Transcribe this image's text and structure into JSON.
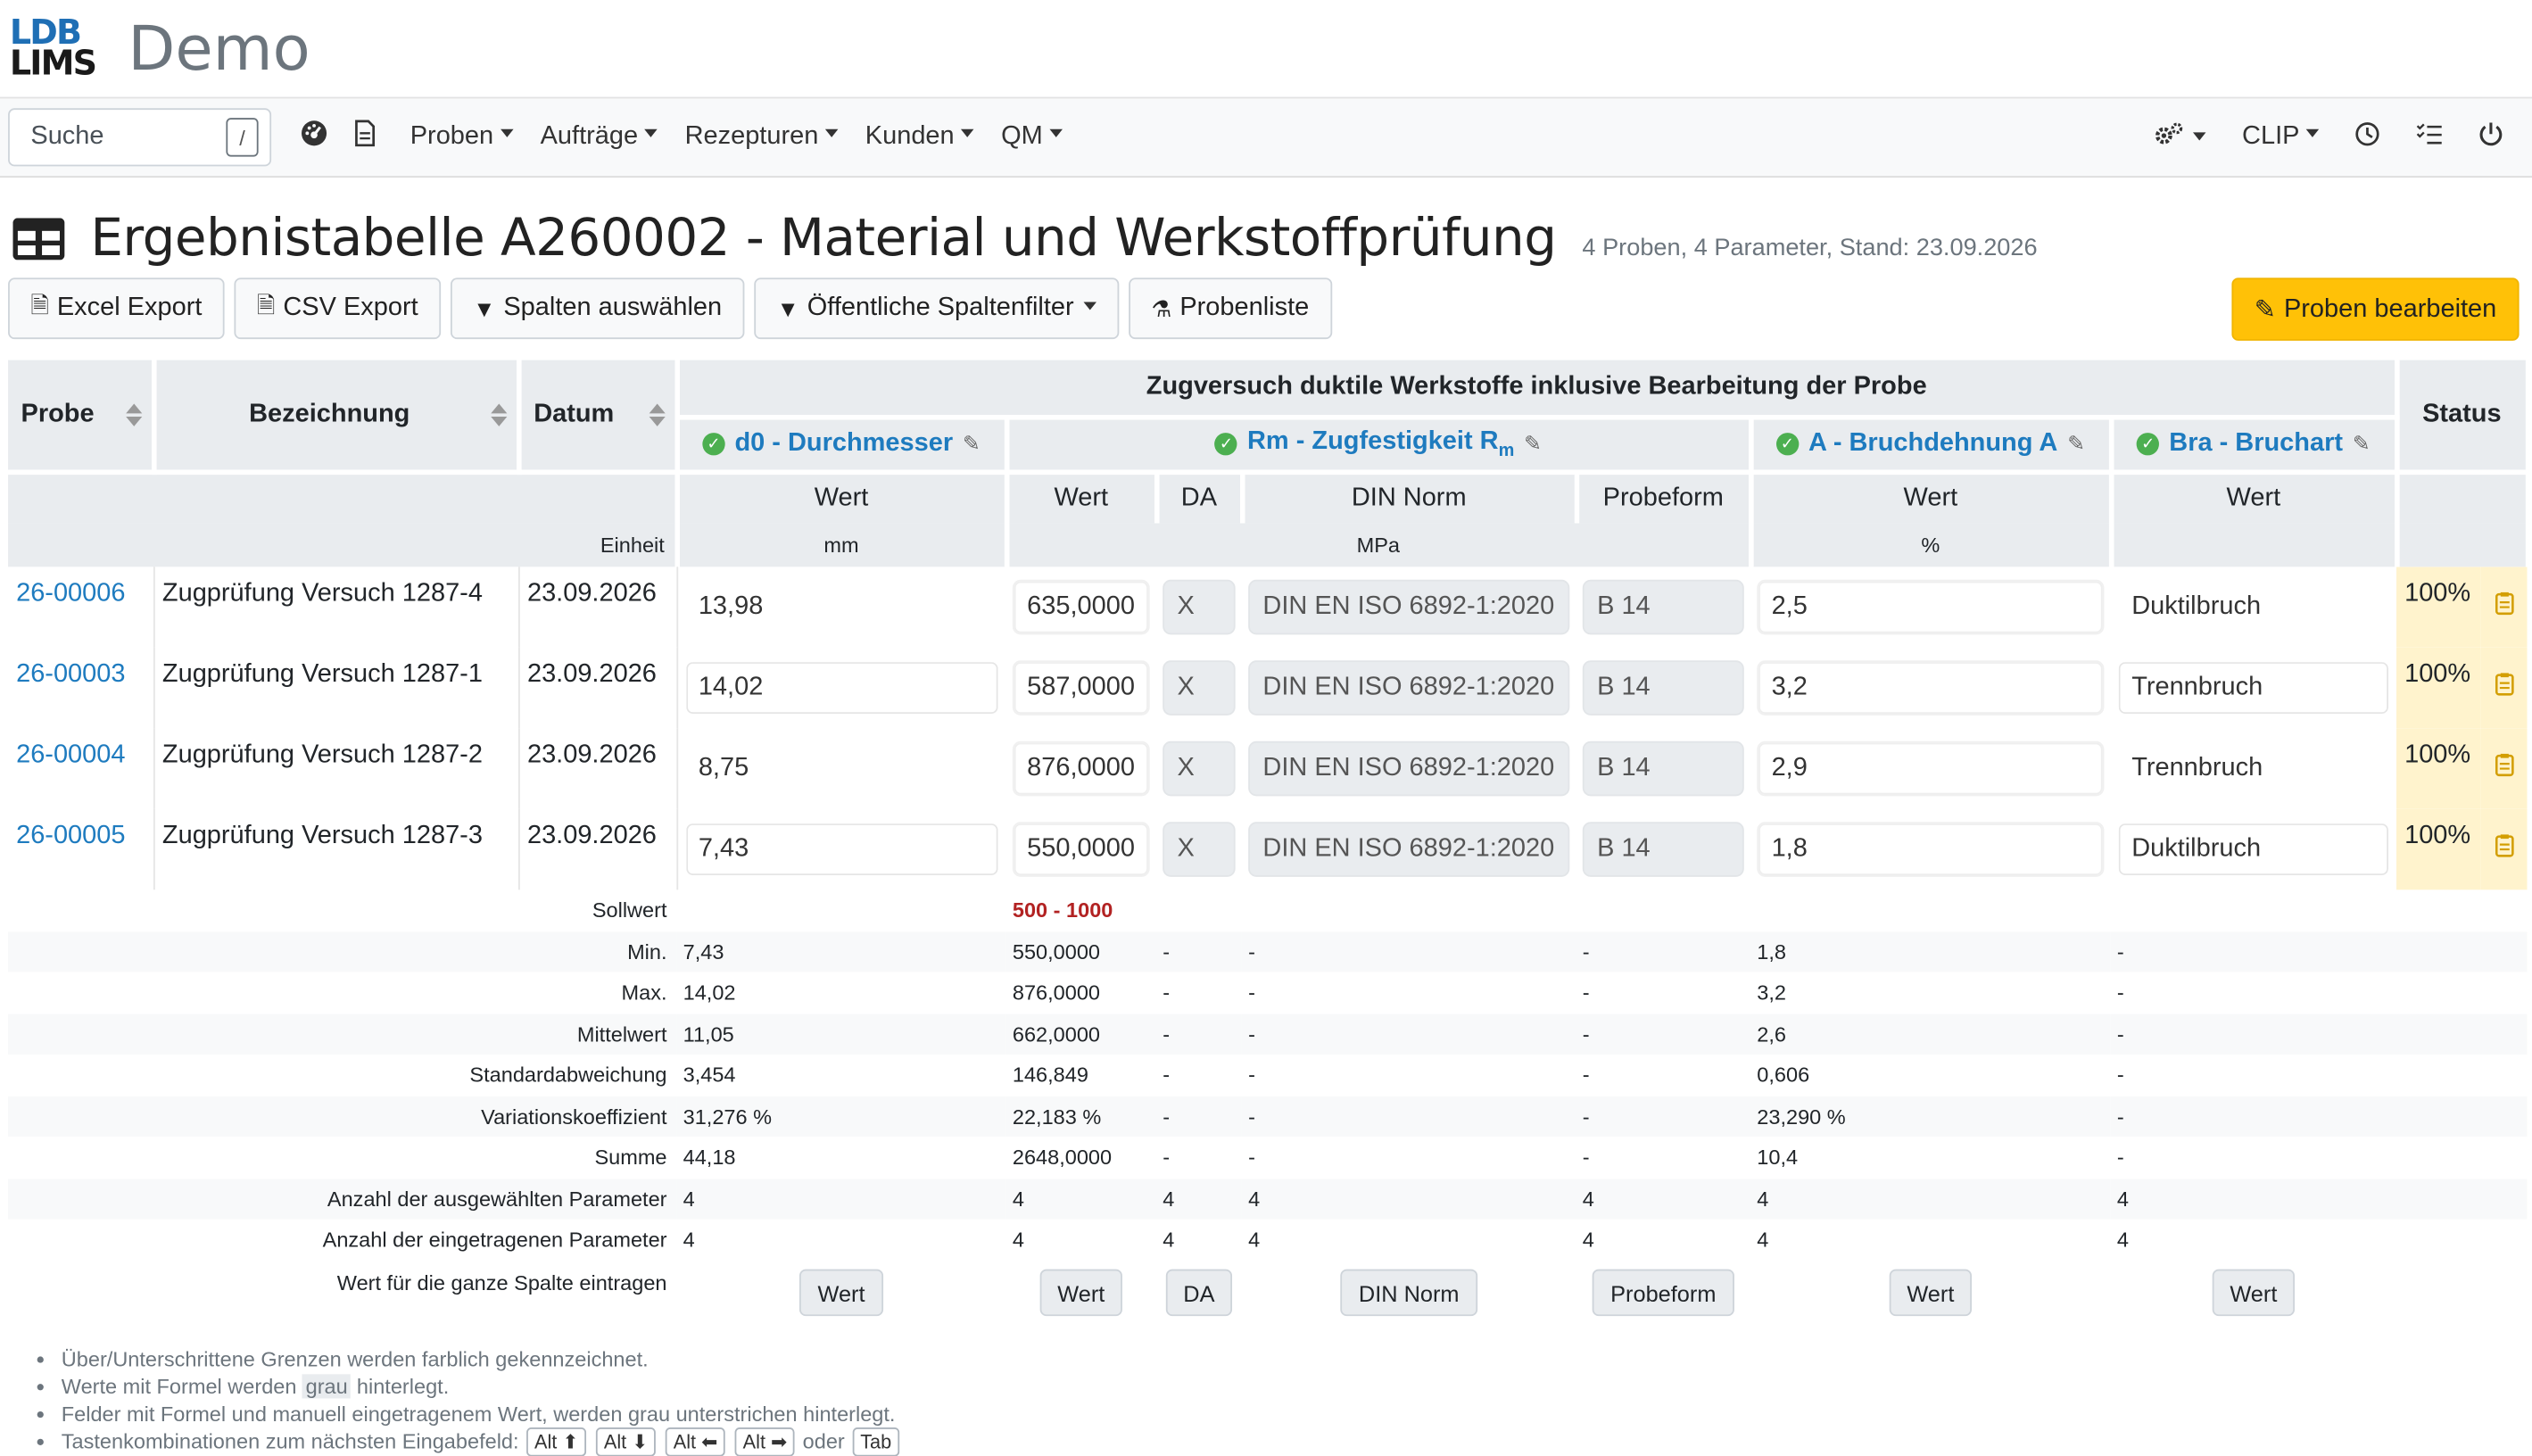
{
  "brand": {
    "logo_line1": "LDB",
    "logo_line2": "LIMS",
    "title": "Demo"
  },
  "nav": {
    "search_label": "Suche",
    "search_shortcut": "/",
    "items": [
      "Proben",
      "Aufträge",
      "Rezepturen",
      "Kunden",
      "QM"
    ],
    "right_clip": "CLIP"
  },
  "page": {
    "title": "Ergebnistabelle A260002 - Material und Werkstoffprüfung",
    "subtitle": "4 Proben, 4 Parameter, Stand: 23.09.2026"
  },
  "toolbar": {
    "excel": "Excel Export",
    "csv": "CSV Export",
    "columns": "Spalten auswählen",
    "filter": "Öffentliche Spaltenfilter",
    "list": "Probenliste",
    "edit": "Proben bearbeiten"
  },
  "table": {
    "col_probe": "Probe",
    "col_bezeichnung": "Bezeichnung",
    "col_datum": "Datum",
    "group": "Zugversuch duktile Werkstoffe inklusive Bearbeitung der Probe",
    "col_status": "Status",
    "params": {
      "d0": "d0 - Durchmesser",
      "rm": "Rm - Zugfestigkeit R",
      "rm_sub": "m",
      "a": "A - Bruchdehnung A",
      "bra": "Bra - Bruchart"
    },
    "sub": {
      "wert": "Wert",
      "da": "DA",
      "din": "DIN Norm",
      "probeform": "Probeform"
    },
    "einheit_label": "Einheit",
    "units": {
      "d0": "mm",
      "rm": "MPa",
      "a": "%"
    },
    "rows": [
      {
        "probe": "26-00006",
        "bez": "Zugprüfung Versuch 1287-4",
        "datum": "23.09.2026",
        "d0": "13,98",
        "rm": "635,0000",
        "da": "X",
        "din": "DIN EN ISO 6892-1:2020",
        "pf": "B 14",
        "a": "2,5",
        "bra": "Duktilbruch",
        "status": "100%"
      },
      {
        "probe": "26-00003",
        "bez": "Zugprüfung Versuch 1287-1",
        "datum": "23.09.2026",
        "d0": "14,02",
        "rm": "587,0000",
        "da": "X",
        "din": "DIN EN ISO 6892-1:2020",
        "pf": "B 14",
        "a": "3,2",
        "bra": "Trennbruch",
        "status": "100%"
      },
      {
        "probe": "26-00004",
        "bez": "Zugprüfung Versuch 1287-2",
        "datum": "23.09.2026",
        "d0": "8,75",
        "rm": "876,0000",
        "da": "X",
        "din": "DIN EN ISO 6892-1:2020",
        "pf": "B 14",
        "a": "2,9",
        "bra": "Trennbruch",
        "status": "100%"
      },
      {
        "probe": "26-00005",
        "bez": "Zugprüfung Versuch 1287-3",
        "datum": "23.09.2026",
        "d0": "7,43",
        "rm": "550,0000",
        "da": "X",
        "din": "DIN EN ISO 6892-1:2020",
        "pf": "B 14",
        "a": "1,8",
        "bra": "Duktilbruch",
        "status": "100%"
      }
    ],
    "sollwert_label": "Sollwert",
    "sollwert_rm": "500 - 1000",
    "stats": [
      {
        "label": "Min.",
        "d0": "7,43",
        "rm": "550,0000",
        "da": "-",
        "din": "-",
        "pf": "-",
        "a": "1,8",
        "bra": "-"
      },
      {
        "label": "Max.",
        "d0": "14,02",
        "rm": "876,0000",
        "da": "-",
        "din": "-",
        "pf": "-",
        "a": "3,2",
        "bra": "-"
      },
      {
        "label": "Mittelwert",
        "d0": "11,05",
        "rm": "662,0000",
        "da": "-",
        "din": "-",
        "pf": "-",
        "a": "2,6",
        "bra": "-"
      },
      {
        "label": "Standardabweichung",
        "d0": "3,454",
        "rm": "146,849",
        "da": "-",
        "din": "-",
        "pf": "-",
        "a": "0,606",
        "bra": "-"
      },
      {
        "label": "Variationskoeffizient",
        "d0": "31,276 %",
        "rm": "22,183 %",
        "da": "-",
        "din": "-",
        "pf": "-",
        "a": "23,290 %",
        "bra": "-"
      },
      {
        "label": "Summe",
        "d0": "44,18",
        "rm": "2648,0000",
        "da": "-",
        "din": "-",
        "pf": "-",
        "a": "10,4",
        "bra": "-"
      },
      {
        "label": "Anzahl der ausgewählten Parameter",
        "d0": "4",
        "rm": "4",
        "da": "4",
        "din": "4",
        "pf": "4",
        "a": "4",
        "bra": "4"
      },
      {
        "label": "Anzahl der eingetragenen Parameter",
        "d0": "4",
        "rm": "4",
        "da": "4",
        "din": "4",
        "pf": "4",
        "a": "4",
        "bra": "4"
      }
    ],
    "fill_label": "Wert für die ganze Spalte eintragen",
    "fill_buttons": {
      "d0": "Wert",
      "rm": "Wert",
      "da": "DA",
      "din": "DIN Norm",
      "pf": "Probeform",
      "a": "Wert",
      "bra": "Wert"
    }
  },
  "notes": {
    "n1": "Über/Unterschrittene Grenzen werden farblich gekennzeichnet.",
    "n2a": "Werte mit Formel werden ",
    "n2b": "grau",
    "n2c": " hinterlegt.",
    "n3": "Felder mit Formel und manuell eingetragenem Wert, werden grau unterstrichen hinterlegt.",
    "n4": "Tastenkombinationen zum nächsten Eingabefeld:",
    "k1": "Alt ⬆",
    "k2": "Alt ⬇",
    "k3": "Alt ⬅",
    "k4": "Alt ➡",
    "oder": "oder",
    "k5": "Tab"
  }
}
